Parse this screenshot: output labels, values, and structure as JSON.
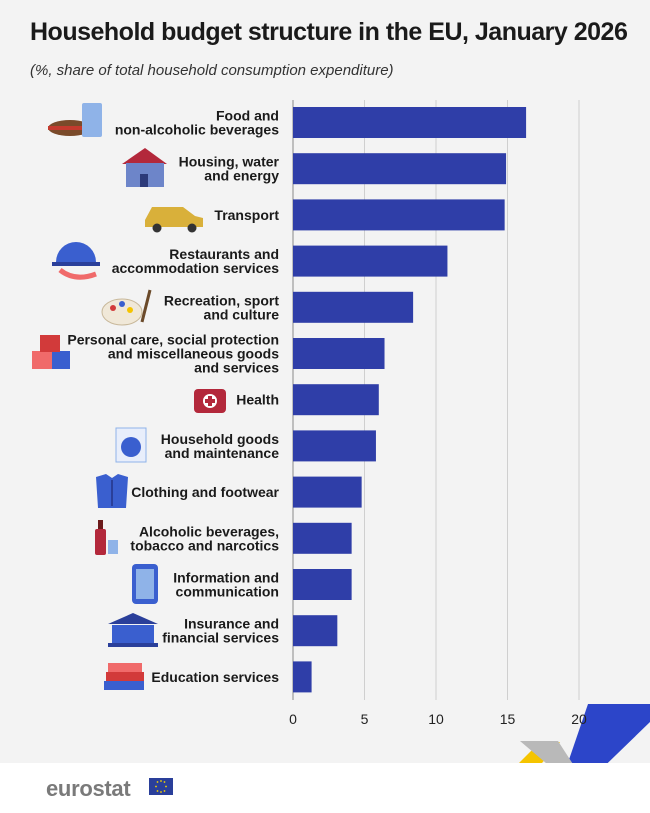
{
  "title": "Household budget structure in the EU, January 2026",
  "subtitle": "(%, share of total household consumption expenditure)",
  "branding": {
    "logo_text": "eurostat"
  },
  "colors": {
    "bar": "#2f3ea8",
    "grid": "#cfcfcf",
    "accent_yellow": "#f5c400",
    "accent_blue": "#2c45c9"
  },
  "chart_data": {
    "type": "bar",
    "orientation": "horizontal",
    "title": "Household budget structure in the EU, January 2026",
    "subtitle": "(%, share of total household consumption expenditure)",
    "xlim": [
      0,
      20
    ],
    "xticks": [
      0,
      5,
      10,
      15,
      20
    ],
    "grid": true,
    "categories": [
      [
        "Food and",
        "non-alcoholic beverages"
      ],
      [
        "Housing, water",
        "and energy"
      ],
      [
        "Transport"
      ],
      [
        "Restaurants and",
        "accommodation services"
      ],
      [
        "Recreation, sport",
        "and culture"
      ],
      [
        "Personal care, social protection",
        "and miscellaneous goods",
        "and services"
      ],
      [
        "Health"
      ],
      [
        "Household goods",
        "and maintenance"
      ],
      [
        "Clothing and footwear"
      ],
      [
        "Alcoholic beverages,",
        "tobacco and narcotics"
      ],
      [
        "Information and",
        "communication"
      ],
      [
        "Insurance and",
        "financial services"
      ],
      [
        "Education services"
      ]
    ],
    "icons": [
      "sandwich-glass-icon",
      "house-icon",
      "car-icon",
      "cloche-icon",
      "palette-icon",
      "boxes-icon",
      "first-aid-kit-icon",
      "washing-machine-icon",
      "shirt-icon",
      "wine-bottle-icon",
      "smartphone-icon",
      "bank-icon",
      "books-icon"
    ],
    "values": [
      16.3,
      14.9,
      14.8,
      10.8,
      8.4,
      6.4,
      6.0,
      5.8,
      4.8,
      4.1,
      4.1,
      3.1,
      1.3
    ]
  }
}
